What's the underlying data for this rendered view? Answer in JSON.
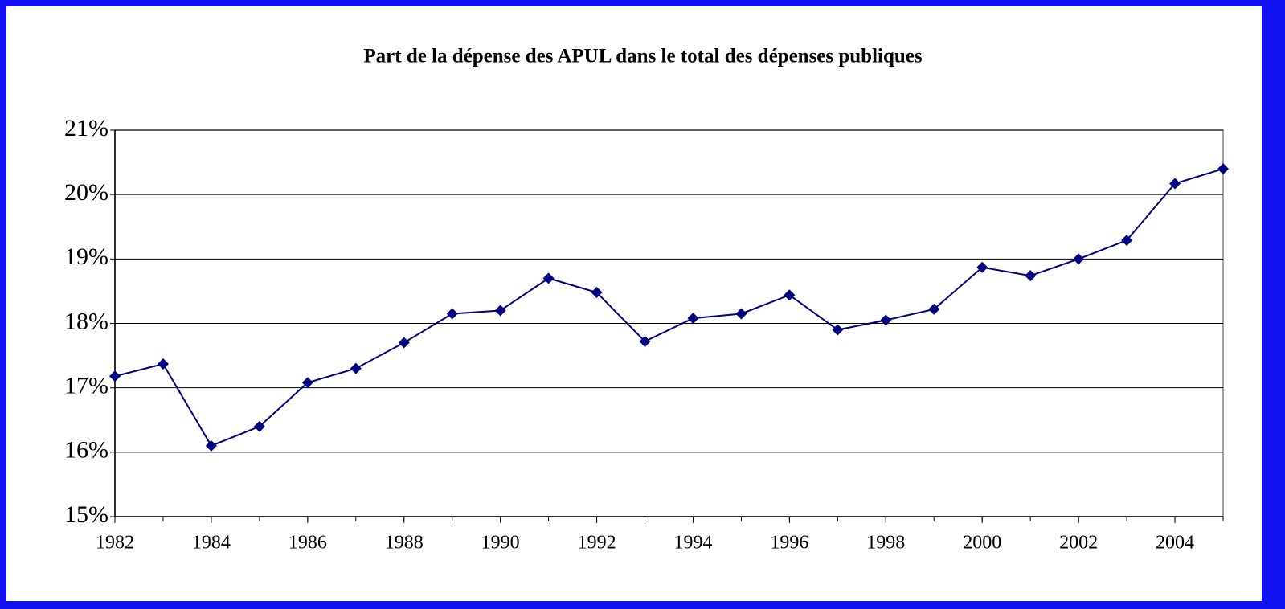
{
  "chart_data": {
    "type": "line",
    "title": "Part de la dépense des APUL dans le total des dépenses publiques",
    "x": [
      1982,
      1983,
      1984,
      1985,
      1986,
      1987,
      1988,
      1989,
      1990,
      1991,
      1992,
      1993,
      1994,
      1995,
      1996,
      1997,
      1998,
      1999,
      2000,
      2001,
      2002,
      2003,
      2004,
      2005
    ],
    "values": [
      17.18,
      17.37,
      16.1,
      16.4,
      17.08,
      17.3,
      17.7,
      18.15,
      18.2,
      18.7,
      18.48,
      17.72,
      18.08,
      18.15,
      18.44,
      17.9,
      18.05,
      18.22,
      18.87,
      18.74,
      19.0,
      19.29,
      20.17,
      20.4
    ],
    "color": "#000080",
    "xlim": [
      1982,
      2005
    ],
    "xticks": [
      1982,
      1984,
      1986,
      1988,
      1990,
      1992,
      1994,
      1996,
      1998,
      2000,
      2002,
      2004
    ],
    "ylim": [
      15,
      21
    ],
    "yticks": [
      {
        "value": 15,
        "label": "15%"
      },
      {
        "value": 16,
        "label": "16%"
      },
      {
        "value": 17,
        "label": "17%"
      },
      {
        "value": 18,
        "label": "18%"
      },
      {
        "value": 19,
        "label": "19%"
      },
      {
        "value": 20,
        "label": "20%"
      },
      {
        "value": 21,
        "label": "21%"
      }
    ],
    "grid": true
  }
}
